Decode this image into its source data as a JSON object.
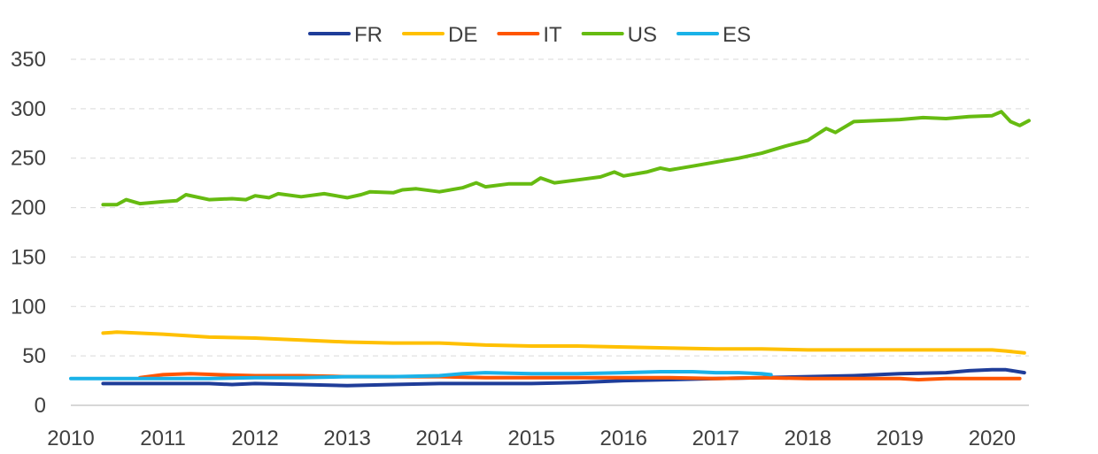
{
  "chart_data": {
    "type": "line",
    "title": "",
    "xlabel": "",
    "ylabel": "",
    "xlim": [
      2010,
      2020.4
    ],
    "ylim": [
      0,
      350
    ],
    "y_ticks": [
      0,
      50,
      100,
      150,
      200,
      250,
      300,
      350
    ],
    "x_ticks": [
      2010,
      2011,
      2012,
      2013,
      2014,
      2015,
      2016,
      2017,
      2018,
      2019,
      2020
    ],
    "grid": "horizontal dashed",
    "legend_position": "top-center",
    "series": [
      {
        "name": "FR",
        "color": "#1f3d99",
        "x": [
          2010.35,
          2011.0,
          2011.5,
          2011.75,
          2012.0,
          2012.5,
          2013.0,
          2013.5,
          2014.0,
          2014.5,
          2015.0,
          2015.5,
          2016.0,
          2016.5,
          2017.0,
          2017.5,
          2018.0,
          2018.5,
          2019.0,
          2019.5,
          2019.75,
          2020.0,
          2020.15,
          2020.35
        ],
        "y": [
          22,
          22,
          22,
          21,
          22,
          21,
          20,
          21,
          22,
          22,
          22,
          23,
          25,
          26,
          27,
          28,
          29,
          30,
          32,
          33,
          35,
          36,
          36,
          33
        ]
      },
      {
        "name": "DE",
        "color": "#ffc000",
        "x": [
          2010.35,
          2010.5,
          2011.0,
          2011.5,
          2012.0,
          2012.5,
          2013.0,
          2013.5,
          2014.0,
          2014.5,
          2015.0,
          2015.5,
          2016.0,
          2016.5,
          2017.0,
          2017.5,
          2018.0,
          2018.5,
          2019.0,
          2019.5,
          2020.0,
          2020.15,
          2020.35
        ],
        "y": [
          73,
          74,
          72,
          69,
          68,
          66,
          64,
          63,
          63,
          61,
          60,
          60,
          59,
          58,
          57,
          57,
          56,
          56,
          56,
          56,
          56,
          55,
          53
        ]
      },
      {
        "name": "IT",
        "color": "#ff5500",
        "x": [
          2010.75,
          2011.0,
          2011.3,
          2011.6,
          2012.0,
          2012.5,
          2013.0,
          2013.5,
          2014.0,
          2014.5,
          2015.0,
          2015.5,
          2016.0,
          2016.5,
          2017.0,
          2017.5,
          2018.0,
          2018.5,
          2019.0,
          2019.2,
          2019.5,
          2020.0,
          2020.3
        ],
        "y": [
          28,
          31,
          32,
          31,
          30,
          30,
          29,
          29,
          29,
          28,
          28,
          28,
          28,
          28,
          27,
          28,
          27,
          27,
          27,
          26,
          27,
          27,
          27
        ]
      },
      {
        "name": "US",
        "color": "#66bb11",
        "x": [
          2010.35,
          2010.5,
          2010.6,
          2010.75,
          2011.0,
          2011.15,
          2011.25,
          2011.5,
          2011.75,
          2011.9,
          2012.0,
          2012.15,
          2012.25,
          2012.5,
          2012.75,
          2013.0,
          2013.15,
          2013.25,
          2013.5,
          2013.6,
          2013.75,
          2014.0,
          2014.25,
          2014.4,
          2014.5,
          2014.75,
          2015.0,
          2015.1,
          2015.25,
          2015.5,
          2015.75,
          2015.9,
          2016.0,
          2016.25,
          2016.4,
          2016.5,
          2016.75,
          2017.0,
          2017.25,
          2017.5,
          2017.75,
          2018.0,
          2018.2,
          2018.3,
          2018.5,
          2018.75,
          2019.0,
          2019.25,
          2019.5,
          2019.75,
          2020.0,
          2020.1,
          2020.2,
          2020.3,
          2020.4
        ],
        "y": [
          203,
          203,
          208,
          204,
          206,
          207,
          213,
          208,
          209,
          208,
          212,
          210,
          214,
          211,
          214,
          210,
          213,
          216,
          215,
          218,
          219,
          216,
          220,
          225,
          221,
          224,
          224,
          230,
          225,
          228,
          231,
          236,
          232,
          236,
          240,
          238,
          242,
          246,
          250,
          255,
          262,
          268,
          280,
          276,
          287,
          288,
          289,
          291,
          290,
          292,
          293,
          297,
          287,
          283,
          288
        ]
      },
      {
        "name": "ES",
        "color": "#1ab2e8",
        "x": [
          2010.0,
          2010.5,
          2011.0,
          2011.5,
          2012.0,
          2012.5,
          2013.0,
          2013.5,
          2014.0,
          2014.25,
          2014.5,
          2015.0,
          2015.5,
          2016.0,
          2016.4,
          2016.75,
          2017.0,
          2017.25,
          2017.5,
          2017.6
        ],
        "y": [
          27,
          27,
          27,
          27,
          28,
          28,
          29,
          29,
          30,
          32,
          33,
          32,
          32,
          33,
          34,
          34,
          33,
          33,
          32,
          31
        ]
      }
    ]
  }
}
